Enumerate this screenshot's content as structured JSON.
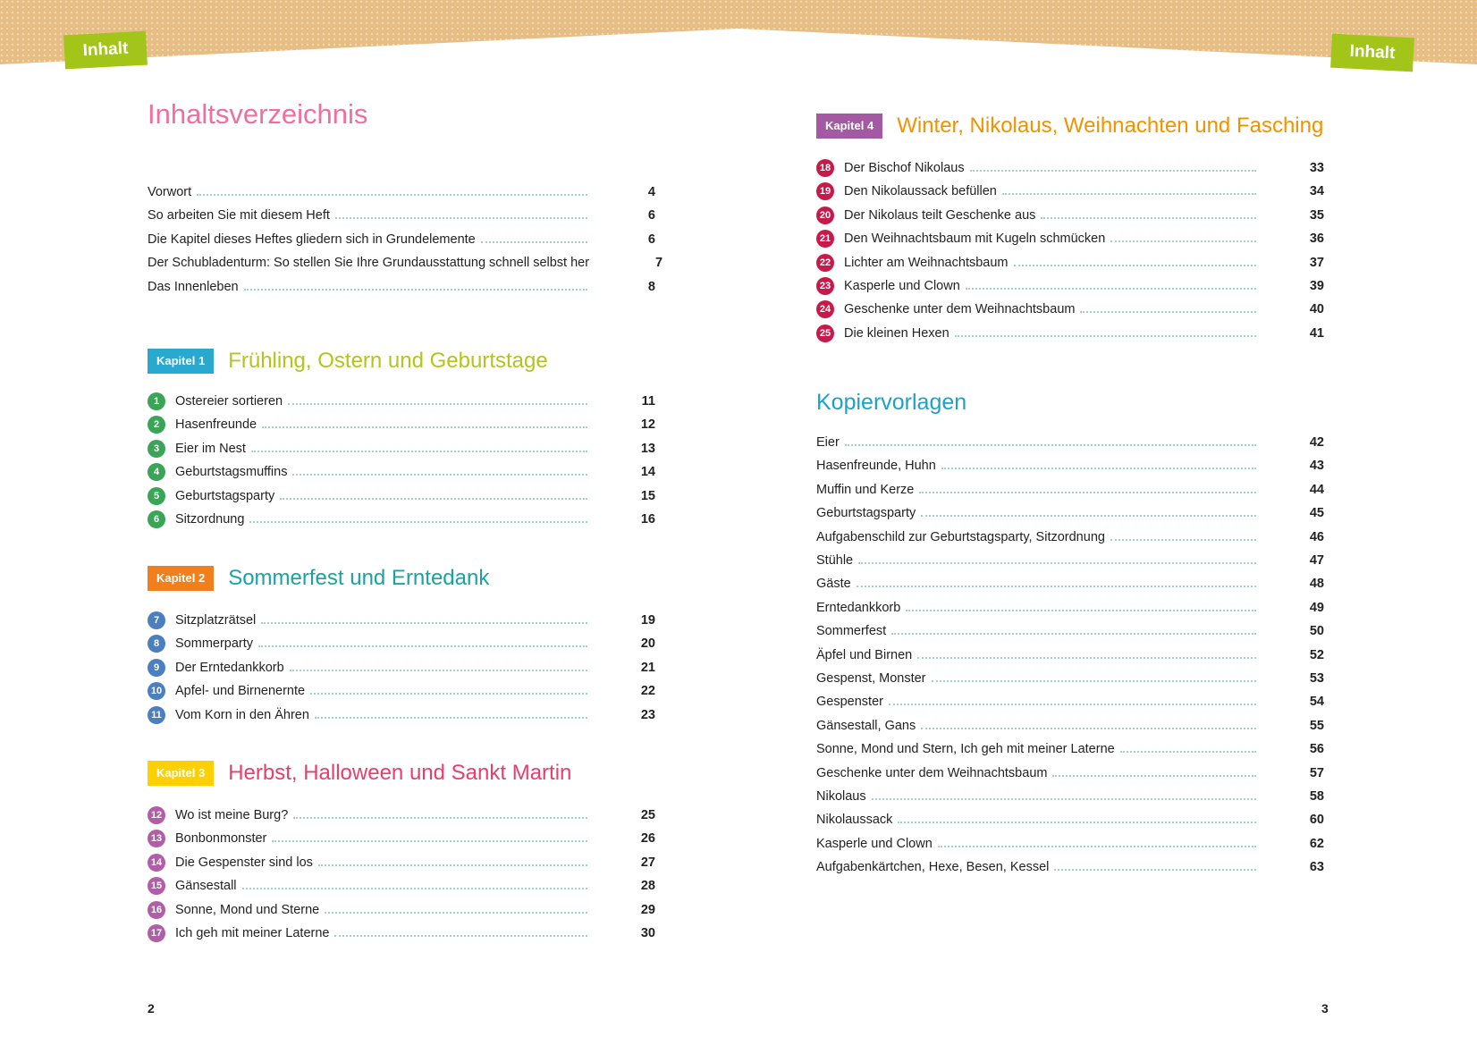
{
  "header": {
    "tab_left": "Inhalt",
    "tab_right": "Inhalt"
  },
  "title": "Inhaltsverzeichnis",
  "intro": [
    {
      "text": "Vorwort",
      "page": 4
    },
    {
      "text": "So arbeiten Sie mit diesem Heft",
      "page": 6
    },
    {
      "text": "Die Kapitel dieses Heftes gliedern sich in Grundelemente",
      "page": 6
    },
    {
      "text": "Der Schubladenturm: So stellen Sie Ihre Grundausstattung schnell selbst her",
      "page": 7
    },
    {
      "text": "Das Innenleben",
      "page": 8
    }
  ],
  "chapters": [
    {
      "label": "Kapitel 1",
      "title": "Frühling, Ostern und Geburtstage",
      "entries": [
        {
          "number": 1,
          "text": "Ostereier sortieren",
          "page": 11
        },
        {
          "number": 2,
          "text": "Hasenfreunde",
          "page": 12
        },
        {
          "number": 3,
          "text": "Eier im Nest",
          "page": 13
        },
        {
          "number": 4,
          "text": "Geburtstagsmuffins",
          "page": 14
        },
        {
          "number": 5,
          "text": "Geburtstagsparty",
          "page": 15
        },
        {
          "number": 6,
          "text": "Sitzordnung",
          "page": 16
        }
      ]
    },
    {
      "label": "Kapitel 2",
      "title": "Sommerfest und Erntedank",
      "entries": [
        {
          "number": 7,
          "text": "Sitzplatzrätsel",
          "page": 19
        },
        {
          "number": 8,
          "text": "Sommerparty",
          "page": 20
        },
        {
          "number": 9,
          "text": "Der Erntedankkorb",
          "page": 21
        },
        {
          "number": 10,
          "text": "Apfel- und Birnenernte",
          "page": 22
        },
        {
          "number": 11,
          "text": "Vom Korn in den Ähren",
          "page": 23
        }
      ]
    },
    {
      "label": "Kapitel 3",
      "title": "Herbst, Halloween und Sankt Martin",
      "entries": [
        {
          "number": 12,
          "text": "Wo ist meine Burg?",
          "page": 25
        },
        {
          "number": 13,
          "text": "Bonbonmonster",
          "page": 26
        },
        {
          "number": 14,
          "text": "Die Gespenster sind los",
          "page": 27
        },
        {
          "number": 15,
          "text": "Gänsestall",
          "page": 28
        },
        {
          "number": 16,
          "text": "Sonne, Mond und Sterne",
          "page": 29
        },
        {
          "number": 17,
          "text": "Ich geh mit meiner Laterne",
          "page": 30
        }
      ]
    },
    {
      "label": "Kapitel 4",
      "title": "Winter, Nikolaus, Weihnachten und Fasching",
      "entries": [
        {
          "number": 18,
          "text": "Der Bischof Nikolaus",
          "page": 33
        },
        {
          "number": 19,
          "text": "Den Nikolaussack befüllen",
          "page": 34
        },
        {
          "number": 20,
          "text": "Der Nikolaus teilt Geschenke aus",
          "page": 35
        },
        {
          "number": 21,
          "text": "Den Weihnachtsbaum mit Kugeln schmücken",
          "page": 36
        },
        {
          "number": 22,
          "text": "Lichter am Weihnachtsbaum",
          "page": 37
        },
        {
          "number": 23,
          "text": "Kasperle und Clown",
          "page": 39
        },
        {
          "number": 24,
          "text": "Geschenke unter dem Weihnachtsbaum",
          "page": 40
        },
        {
          "number": 25,
          "text": "Die kleinen Hexen",
          "page": 41
        }
      ]
    }
  ],
  "templates": {
    "title": "Kopiervorlagen",
    "entries": [
      {
        "text": "Eier",
        "page": 42
      },
      {
        "text": "Hasenfreunde, Huhn",
        "page": 43
      },
      {
        "text": "Muffin und Kerze",
        "page": 44
      },
      {
        "text": "Geburtstagsparty",
        "page": 45
      },
      {
        "text": "Aufgabenschild zur Geburtstagsparty, Sitzordnung",
        "page": 46
      },
      {
        "text": "Stühle",
        "page": 47
      },
      {
        "text": "Gäste",
        "page": 48
      },
      {
        "text": "Erntedankkorb",
        "page": 49
      },
      {
        "text": "Sommerfest",
        "page": 50
      },
      {
        "text": "Äpfel und Birnen",
        "page": 52
      },
      {
        "text": "Gespenst, Monster",
        "page": 53
      },
      {
        "text": "Gespenster",
        "page": 54
      },
      {
        "text": "Gänsestall, Gans",
        "page": 55
      },
      {
        "text": "Sonne, Mond und Stern, Ich geh mit meiner Laterne",
        "page": 56
      },
      {
        "text": "Geschenke unter dem Weihnachtsbaum",
        "page": 57
      },
      {
        "text": "Nikolaus",
        "page": 58
      },
      {
        "text": "Nikolaussack",
        "page": 60
      },
      {
        "text": "Kasperle und Clown",
        "page": 62
      },
      {
        "text": "Aufgabenkärtchen, Hexe, Besen, Kessel",
        "page": 63
      }
    ]
  },
  "footer": {
    "page_left": 2,
    "page_right": 3
  }
}
